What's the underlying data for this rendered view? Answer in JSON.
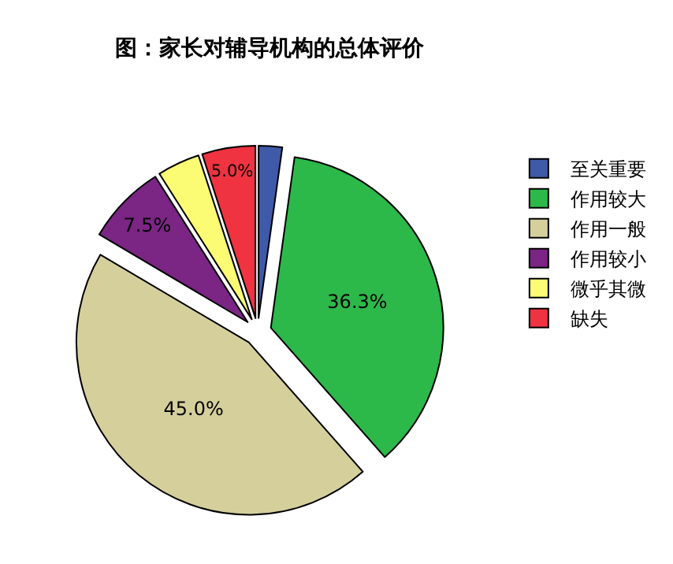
{
  "chart_data": {
    "type": "pie",
    "title": "图：家长对辅导机构的总体评价",
    "categories": [
      "至关重要",
      "作用较大",
      "作用一般",
      "作用较小",
      "微乎其微",
      "缺失"
    ],
    "values": [
      2.2,
      36.3,
      45.0,
      7.5,
      4.0,
      5.0
    ],
    "value_labels": [
      null,
      "36.3%",
      "45.0%",
      "7.5%",
      null,
      "5.0%"
    ],
    "colors": [
      "#3e5aa9",
      "#2db84a",
      "#d5cf9c",
      "#7b2585",
      "#fbfb74",
      "#ef3340"
    ],
    "legend": "top right"
  }
}
